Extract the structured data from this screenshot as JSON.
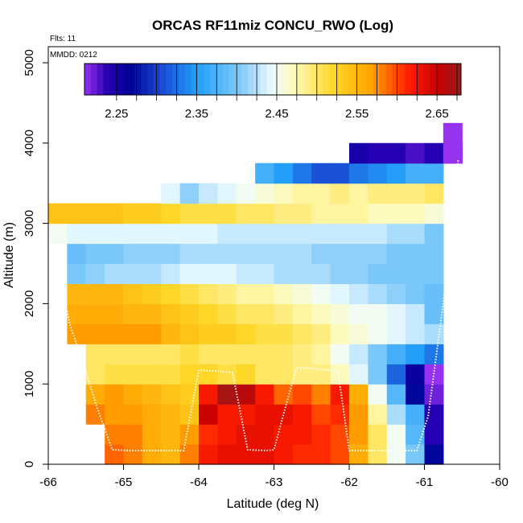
{
  "chart_data": {
    "type": "heatmap",
    "title": "ORCAS RF11miz CONCU_RWO (Log)",
    "annotations": {
      "flights": "Flts: 11",
      "date": "MMDD: 0212"
    },
    "xlabel": "Latitude (deg N)",
    "ylabel": "Altitude (m)",
    "xlim": [
      -66,
      -60
    ],
    "ylim": [
      0,
      5200
    ],
    "x_ticks": [
      "-66",
      "-65",
      "-64",
      "-63",
      "-62",
      "-61",
      "-60"
    ],
    "x_tick_values": [
      -66,
      -65,
      -64,
      -63,
      -62,
      -61,
      -60
    ],
    "y_ticks": [
      "0",
      "1000",
      "2000",
      "3000",
      "4000",
      "5000"
    ],
    "y_tick_values": [
      0,
      1000,
      2000,
      3000,
      4000,
      5000
    ],
    "colorbar": {
      "range": [
        2.21,
        2.68
      ],
      "labels": [
        "2.25",
        "2.35",
        "2.45",
        "2.55",
        "2.65"
      ],
      "label_values": [
        2.25,
        2.35,
        2.45,
        2.55,
        2.65
      ]
    },
    "bin_width_deg": 0.25,
    "bin_height_m": 250,
    "rows": [
      {
        "alt": 0,
        "x_start": -65.25,
        "values": [
          2.59,
          2.58,
          2.56,
          2.55,
          2.58,
          2.62,
          2.63,
          2.63,
          2.63,
          2.62,
          2.61,
          2.61,
          2.6,
          2.56,
          2.5,
          2.45,
          2.4,
          2.27
        ]
      },
      {
        "alt": 250,
        "x_start": -65.25,
        "values": [
          2.58,
          2.58,
          2.56,
          2.55,
          2.57,
          2.61,
          2.62,
          2.63,
          2.63,
          2.62,
          2.62,
          2.61,
          2.6,
          2.57,
          2.5,
          2.45,
          2.38,
          2.24
        ]
      },
      {
        "alt": 500,
        "x_start": -65.5,
        "values": [
          2.58,
          2.57,
          2.57,
          2.56,
          2.55,
          2.54,
          2.65,
          2.62,
          2.62,
          2.63,
          2.63,
          2.62,
          2.6,
          2.61,
          2.57,
          2.48,
          2.42,
          2.37,
          2.24
        ]
      },
      {
        "alt": 750,
        "x_start": -65.5,
        "values": [
          2.56,
          2.57,
          2.56,
          2.55,
          2.54,
          2.53,
          2.62,
          2.67,
          2.66,
          2.62,
          2.59,
          2.6,
          2.58,
          2.62,
          2.56,
          2.45,
          2.38,
          2.27,
          2.22
        ]
      },
      {
        "alt": 1000,
        "x_start": -65.5,
        "values": [
          2.5,
          2.51,
          2.51,
          2.51,
          2.51,
          2.52,
          2.52,
          2.51,
          2.52,
          2.5,
          2.5,
          2.49,
          2.49,
          2.47,
          2.44,
          2.4,
          2.32,
          2.26,
          2.21
        ]
      },
      {
        "alt": 1250,
        "x_start": -65.5,
        "values": [
          2.5,
          2.5,
          2.5,
          2.5,
          2.5,
          2.51,
          2.5,
          2.5,
          2.5,
          2.5,
          2.5,
          2.49,
          2.48,
          2.45,
          2.43,
          2.4,
          2.37,
          2.35,
          2.33
        ]
      },
      {
        "alt": 1500,
        "x_start": -65.75,
        "values": [
          2.57,
          2.57,
          2.57,
          2.57,
          2.57,
          2.55,
          2.54,
          2.53,
          2.53,
          2.52,
          2.51,
          2.51,
          2.5,
          2.49,
          2.47,
          2.46,
          2.45,
          2.44,
          2.43,
          2.42
        ]
      },
      {
        "alt": 1750,
        "x_start": -65.75,
        "values": [
          2.56,
          2.56,
          2.56,
          2.55,
          2.55,
          2.54,
          2.53,
          2.52,
          2.51,
          2.5,
          2.5,
          2.49,
          2.48,
          2.47,
          2.46,
          2.45,
          2.45,
          2.44,
          2.43,
          2.39
        ]
      },
      {
        "alt": 2000,
        "x_start": -65.75,
        "values": [
          2.55,
          2.55,
          2.55,
          2.54,
          2.53,
          2.52,
          2.51,
          2.5,
          2.49,
          2.48,
          2.48,
          2.47,
          2.46,
          2.45,
          2.44,
          2.43,
          2.42,
          2.41,
          2.4,
          2.39
        ]
      },
      {
        "alt": 2250,
        "x_start": -65.75,
        "values": [
          2.4,
          2.41,
          2.42,
          2.42,
          2.42,
          2.43,
          2.44,
          2.44,
          2.44,
          2.43,
          2.43,
          2.42,
          2.42,
          2.42,
          2.41,
          2.41,
          2.4,
          2.4,
          2.4,
          2.4
        ]
      },
      {
        "alt": 2500,
        "x_start": -65.75,
        "values": [
          2.39,
          2.4,
          2.4,
          2.41,
          2.41,
          2.41,
          2.42,
          2.42,
          2.42,
          2.42,
          2.42,
          2.42,
          2.42,
          2.41,
          2.41,
          2.41,
          2.41,
          2.4,
          2.4,
          2.4
        ]
      },
      {
        "alt": 2750,
        "x_start": -66.0,
        "values": [
          2.45,
          2.44,
          2.44,
          2.44,
          2.44,
          2.44,
          2.44,
          2.44,
          2.44,
          2.43,
          2.43,
          2.43,
          2.43,
          2.43,
          2.43,
          2.43,
          2.43,
          2.43,
          2.42,
          2.42,
          2.4
        ]
      },
      {
        "alt": 3000,
        "x_start": -66.0,
        "values": [
          2.54,
          2.54,
          2.54,
          2.54,
          2.53,
          2.53,
          2.52,
          2.51,
          2.51,
          2.51,
          2.5,
          2.5,
          2.49,
          2.49,
          2.48,
          2.48,
          2.48,
          2.47,
          2.47,
          2.47,
          2.46
        ]
      },
      {
        "alt": 3250,
        "x_start": -64.5,
        "values": [
          2.44,
          2.41,
          2.43,
          2.44,
          2.45,
          2.46,
          2.47,
          2.48,
          2.48,
          2.49,
          2.48,
          2.49,
          2.49,
          2.49,
          2.5
        ]
      },
      {
        "alt": 3500,
        "x_start": -63.25,
        "values": [
          2.37,
          2.35,
          2.33,
          2.31,
          2.31,
          2.33,
          2.34,
          2.35,
          2.37,
          2.37
        ]
      },
      {
        "alt": 3750,
        "x_start": -62.0,
        "values": [
          2.25,
          2.24,
          2.24,
          2.23,
          2.24,
          2.23
        ]
      },
      {
        "alt": 3750,
        "x_start": -60.75,
        "values": [
          2.21
        ]
      },
      {
        "alt": 4000,
        "x_start": -60.75,
        "values": [
          2.21
        ]
      }
    ],
    "flight_track": {
      "name": "flight altitude track (dotted white)",
      "lat": [
        -66.0,
        -65.9,
        -65.7,
        -65.55,
        -65.35,
        -65.15,
        -64.9,
        -64.5,
        -64.2,
        -64.0,
        -63.75,
        -63.55,
        -63.35,
        -63.1,
        -63.0,
        -62.85,
        -62.7,
        -62.6,
        -62.35,
        -62.15,
        -62.0,
        -61.9,
        -61.7,
        -61.4,
        -61.1,
        -60.95,
        -60.85,
        -60.75,
        -60.65,
        -60.55
      ],
      "alt": [
        2900,
        2500,
        1700,
        1300,
        700,
        180,
        170,
        170,
        170,
        1170,
        1160,
        1140,
        180,
        170,
        180,
        700,
        1200,
        1200,
        1180,
        1160,
        170,
        170,
        170,
        170,
        170,
        600,
        1300,
        2000,
        2900,
        3800
      ]
    }
  }
}
